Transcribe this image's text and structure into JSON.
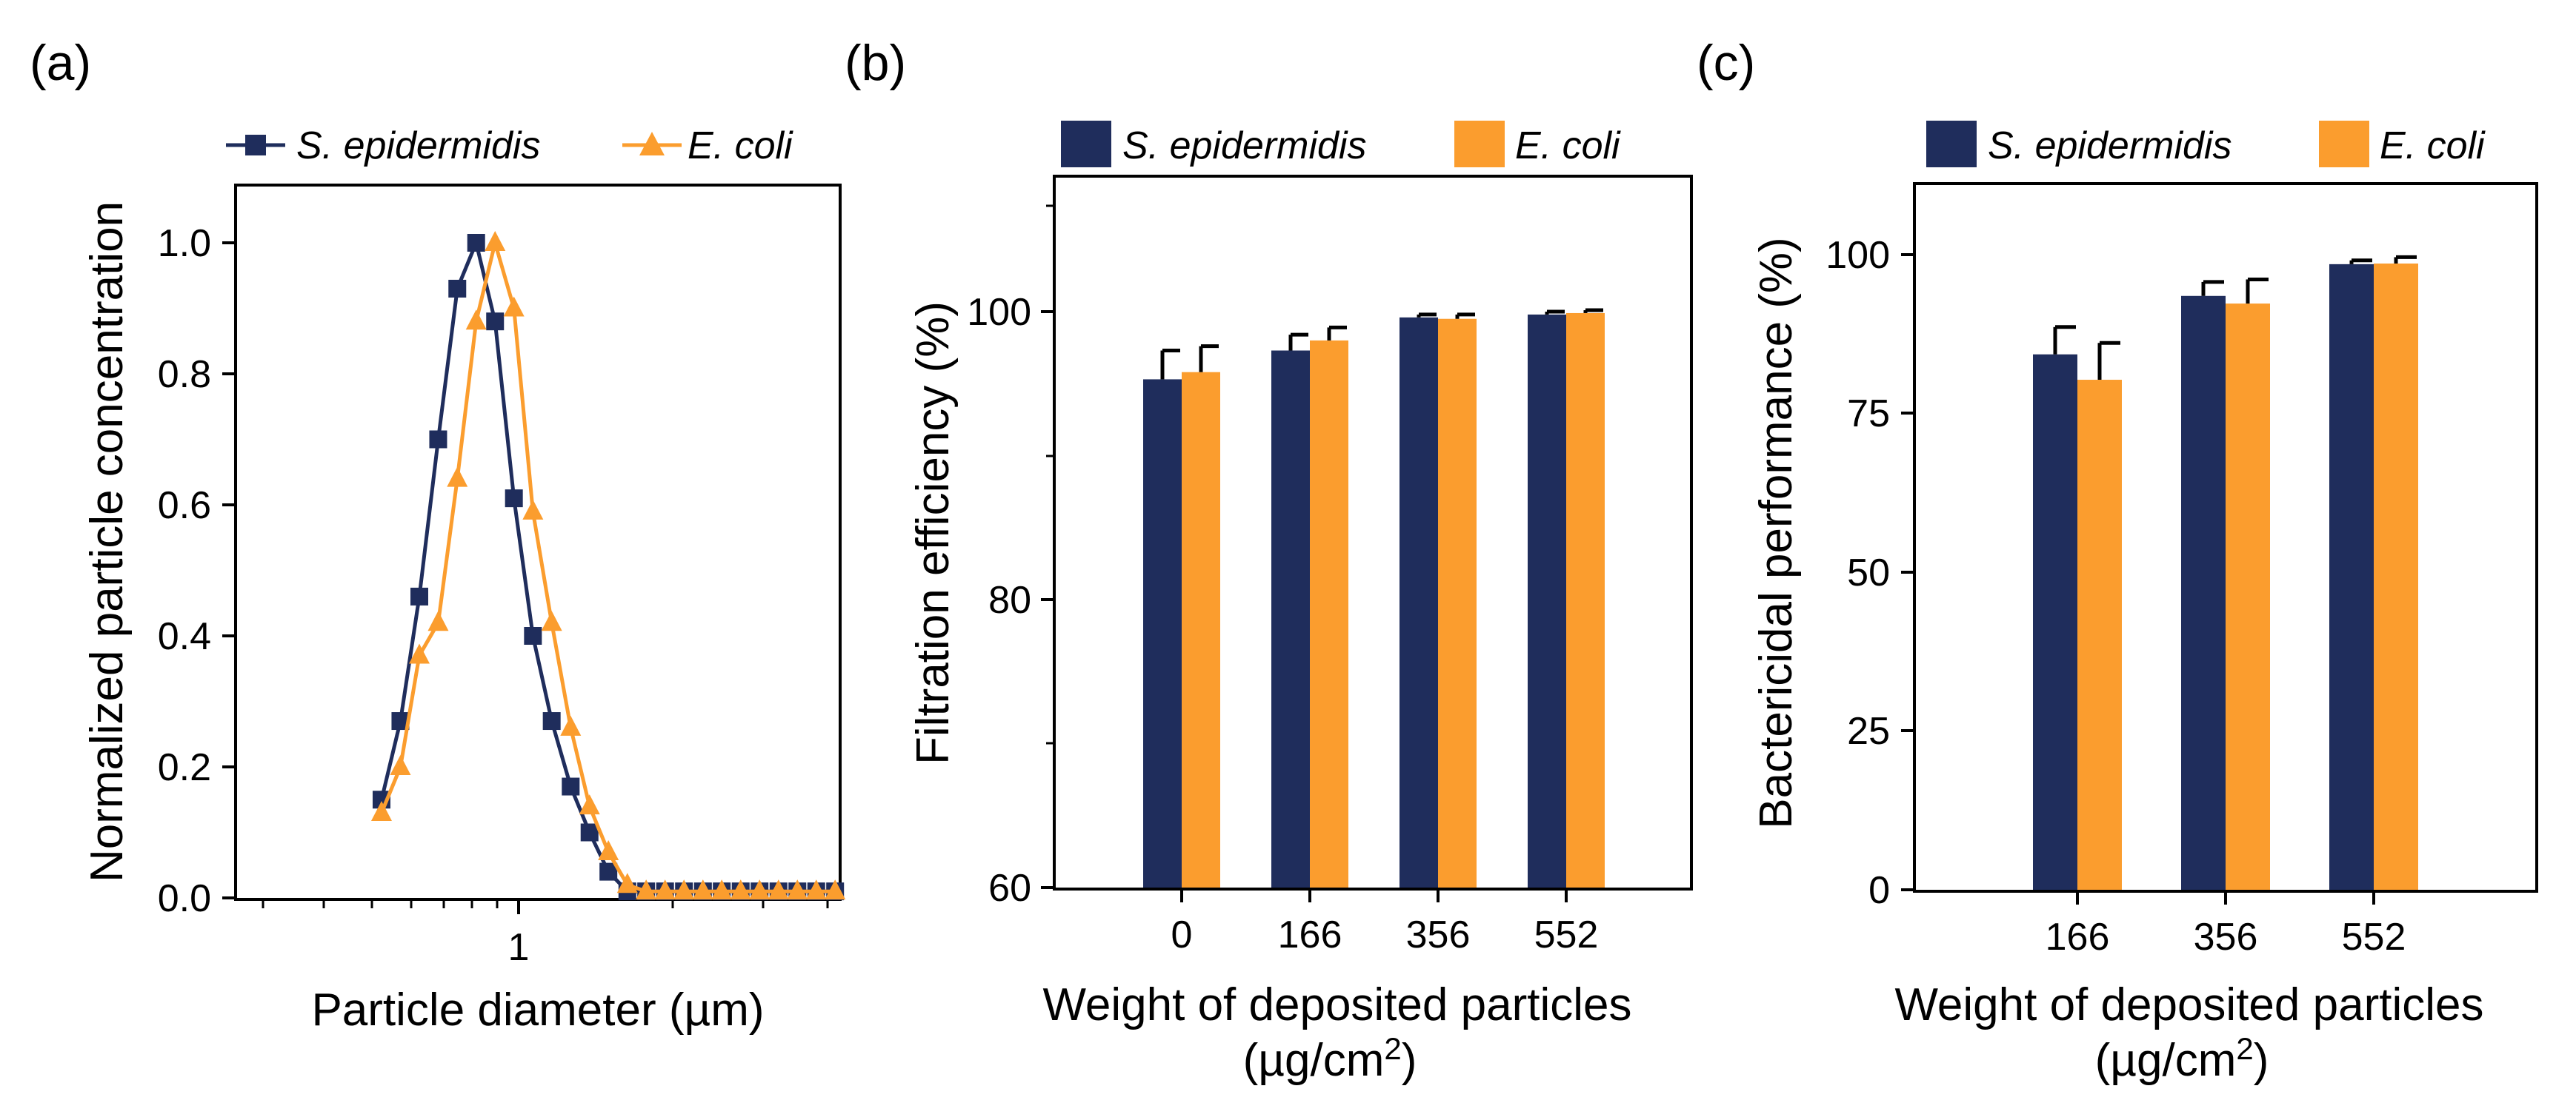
{
  "colors": {
    "navy": "#1f2d5c",
    "orange": "#fb9d2e"
  },
  "panel_a": {
    "label": "(a)",
    "legend": [
      {
        "name": "S. epidermidis",
        "marker": "square"
      },
      {
        "name": "E. coli",
        "marker": "triangle"
      }
    ],
    "xlabel": "Particle diameter (µm)",
    "ylabel": "Normalized  particle concentration",
    "xtick_label": "1",
    "ytick_labels": [
      "0.0",
      "0.2",
      "0.4",
      "0.6",
      "0.8",
      "1.0"
    ]
  },
  "panel_b": {
    "label": "(b)",
    "legend": [
      "S. epidermidis",
      "E. coli"
    ],
    "xlabel_line1": "Weight of deposited   particles",
    "xlabel_line2_main": "(µg/cm",
    "xlabel_line2_sup": "2",
    "xlabel_line2_end": ")",
    "ylabel": "Filtration efficiency (%)",
    "categories": [
      "0",
      "166",
      "356",
      "552"
    ],
    "ytick_labels": [
      "60",
      "80",
      "100"
    ]
  },
  "panel_c": {
    "label": "(c)",
    "legend": [
      "S. epidermidis",
      "E. coli"
    ],
    "xlabel_line1": "Weight of deposited   particles",
    "xlabel_line2_main": "(µg/cm",
    "xlabel_line2_sup": "2",
    "xlabel_line2_end": ")",
    "ylabel": "Bactericidal performance (%)",
    "categories": [
      "166",
      "356",
      "552"
    ],
    "ytick_labels": [
      "0",
      "25",
      "50",
      "75",
      "100"
    ]
  },
  "chart_data": [
    {
      "type": "line",
      "title": "(a)",
      "xlabel": "Particle diameter (µm)",
      "ylabel": "Normalized  particle concentration",
      "xscale": "log",
      "xlim": [
        0.3,
        3.0
      ],
      "ylim": [
        0.0,
        1.1
      ],
      "legend_position": "top",
      "series": [
        {
          "name": "S. epidermidis",
          "marker": "square",
          "x": [
            0.523,
            0.562,
            0.604,
            0.649,
            0.698,
            0.75,
            0.806,
            0.866,
            0.931,
            1.0,
            1.075,
            1.155,
            1.241,
            1.334,
            1.433,
            1.54,
            1.655,
            1.779,
            1.911,
            2.054,
            2.207,
            2.372,
            2.549,
            2.739,
            2.943
          ],
          "y": [
            0.15,
            0.27,
            0.46,
            0.7,
            0.93,
            1.0,
            0.88,
            0.61,
            0.4,
            0.27,
            0.17,
            0.1,
            0.04,
            0.01,
            0.01,
            0.01,
            0.01,
            0.01,
            0.01,
            0.01,
            0.01,
            0.01,
            0.01,
            0.01,
            0.01
          ]
        },
        {
          "name": "E. coli",
          "marker": "triangle",
          "x": [
            0.523,
            0.562,
            0.604,
            0.649,
            0.698,
            0.75,
            0.806,
            0.866,
            0.931,
            1.0,
            1.075,
            1.155,
            1.241,
            1.334,
            1.433,
            1.54,
            1.655,
            1.779,
            1.911,
            2.054,
            2.207,
            2.372,
            2.549,
            2.739,
            2.943
          ],
          "y": [
            0.13,
            0.2,
            0.37,
            0.42,
            0.64,
            0.88,
            1.0,
            0.9,
            0.59,
            0.42,
            0.26,
            0.14,
            0.07,
            0.02,
            0.01,
            0.01,
            0.01,
            0.01,
            0.01,
            0.01,
            0.01,
            0.01,
            0.01,
            0.01,
            0.01
          ]
        }
      ]
    },
    {
      "type": "bar",
      "title": "(b)",
      "xlabel": "Weight of deposited particles (µg/cm2)",
      "ylabel": "Filtration efficiency (%)",
      "categories": [
        "0",
        "166",
        "356",
        "552"
      ],
      "ylim": [
        60,
        110
      ],
      "legend_position": "top",
      "series": [
        {
          "name": "S. epidermidis",
          "values": [
            95.3,
            97.3,
            99.6,
            99.8
          ],
          "errors": [
            2.0,
            1.1,
            0.2,
            0.2
          ]
        },
        {
          "name": "E. coli",
          "values": [
            95.8,
            98.0,
            99.5,
            99.9
          ],
          "errors": [
            1.8,
            0.9,
            0.3,
            0.2
          ]
        }
      ]
    },
    {
      "type": "bar",
      "title": "(c)",
      "xlabel": "Weight of deposited particles (µg/cm2)",
      "ylabel": "Bactericidal performance (%)",
      "categories": [
        "166",
        "356",
        "552"
      ],
      "ylim": [
        0,
        110
      ],
      "legend_position": "top",
      "series": [
        {
          "name": "S. epidermidis",
          "values": [
            84.3,
            93.5,
            98.5
          ],
          "errors": [
            4.3,
            2.2,
            0.6
          ]
        },
        {
          "name": "E. coli",
          "values": [
            80.3,
            92.3,
            98.6
          ],
          "errors": [
            5.8,
            3.8,
            1.0
          ]
        }
      ]
    }
  ]
}
